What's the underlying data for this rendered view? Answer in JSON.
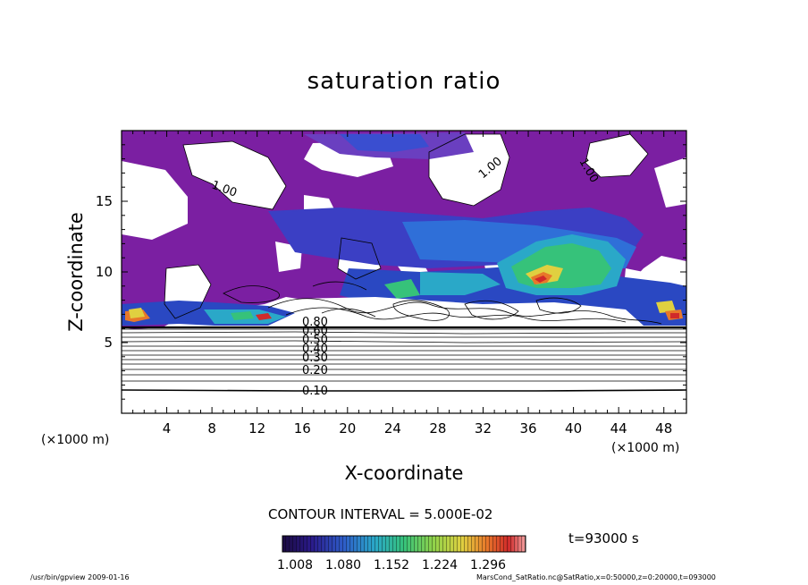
{
  "chart_data": {
    "type": "heatmap",
    "title": "saturation ratio",
    "xlabel": "X-coordinate",
    "ylabel": "Z-coordinate",
    "x_unit": "(×1000 m)",
    "z_unit": "(×1000 m)",
    "xlim": [
      0,
      50
    ],
    "ylim": [
      0,
      20
    ],
    "x_ticks": [
      4,
      8,
      12,
      16,
      20,
      24,
      28,
      32,
      36,
      40,
      44,
      48
    ],
    "y_ticks": [
      5,
      10,
      15
    ],
    "contour_labels": [
      "1.00",
      "1.00",
      "1.00",
      "0.80",
      "0.60",
      "0.50",
      "0.40",
      "0.30",
      "0.20",
      "0.10"
    ],
    "colorbar": {
      "ticks": [
        "1.008",
        "1.080",
        "1.152",
        "1.224",
        "1.296"
      ],
      "colors": [
        "#1b0b40",
        "#2a1a8a",
        "#2e5cc8",
        "#2aa8c8",
        "#36c27a",
        "#8fd24a",
        "#e0d040",
        "#e8782a",
        "#d02a2a",
        "#f0a0a0"
      ]
    },
    "contour_interval": "CONTOUR INTERVAL = 5.000E-02",
    "time": "t=93000 s"
  },
  "footer": {
    "left": "/usr/bin/gpview   2009-01-16",
    "right": "MarsCond_SatRatio.nc@SatRatio,x=0:50000,z=0:20000,t=093000"
  }
}
